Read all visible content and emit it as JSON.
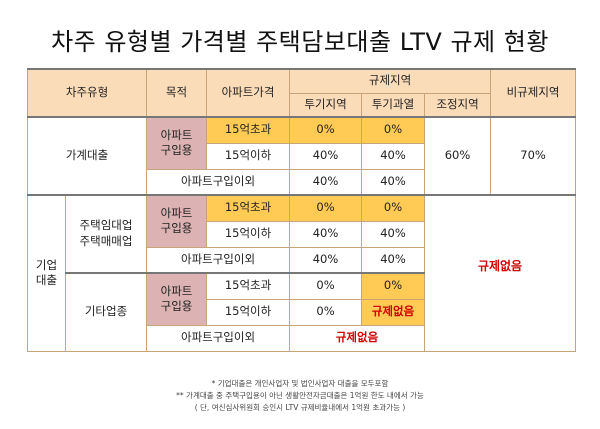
{
  "title": "차주 유형별 가격별 주택담보대출 LTV 규제 현황",
  "header": {
    "borrower_type": "차주유형",
    "purpose": "목적",
    "apt_price": "아파트가격",
    "regulated_region": "규제지역",
    "speculation_area": "투기지역",
    "overheated_area": "투기과열",
    "adjusted_area": "조정지역",
    "non_regulated": "비규제지역"
  },
  "household": {
    "type": "가계대출",
    "apt_purchase": "아파트\n구입용",
    "over_15": {
      "price": "15억초과",
      "spec": "0%",
      "over": "0%"
    },
    "under_15": {
      "price": "15억이하",
      "spec": "40%",
      "over": "40%"
    },
    "other": {
      "label": "아파트구입이외",
      "spec": "40%",
      "over": "40%"
    },
    "adjusted": "60%",
    "non_regulated": "70%"
  },
  "corporate": {
    "type": "기업\n대출",
    "housing_biz": {
      "label": "주택임대업\n주택매매업",
      "apt_purchase": "아파트\n구입용",
      "over_15": {
        "price": "15억초과",
        "spec": "0%",
        "over": "0%"
      },
      "under_15": {
        "price": "15억이하",
        "spec": "40%",
        "over": "40%"
      },
      "other": {
        "label": "아파트구입이외",
        "spec": "40%",
        "over": "40%"
      }
    },
    "other_biz": {
      "label": "기타업종",
      "apt_purchase": "아파트\n구입용",
      "over_15": {
        "price": "15억초과",
        "spec": "0%",
        "over": "0%"
      },
      "under_15": {
        "price": "15억이하",
        "spec": "0%",
        "over": "규제없음"
      },
      "other": {
        "label": "아파트구입이외",
        "value": "규제없음"
      }
    },
    "no_regulation": "규제없음"
  },
  "notes": [
    "* 기업대출은 개인사업자 및 법인사업자 대출을 모두포함",
    "** 가계대출 중 주택구입용이 아닌 생활안전자금대출은 1억원 한도 내에서 가능",
    "( 단, 여신심사위원회 승인시 LTV 규제비율내에서 1억원 초과가능 )"
  ]
}
